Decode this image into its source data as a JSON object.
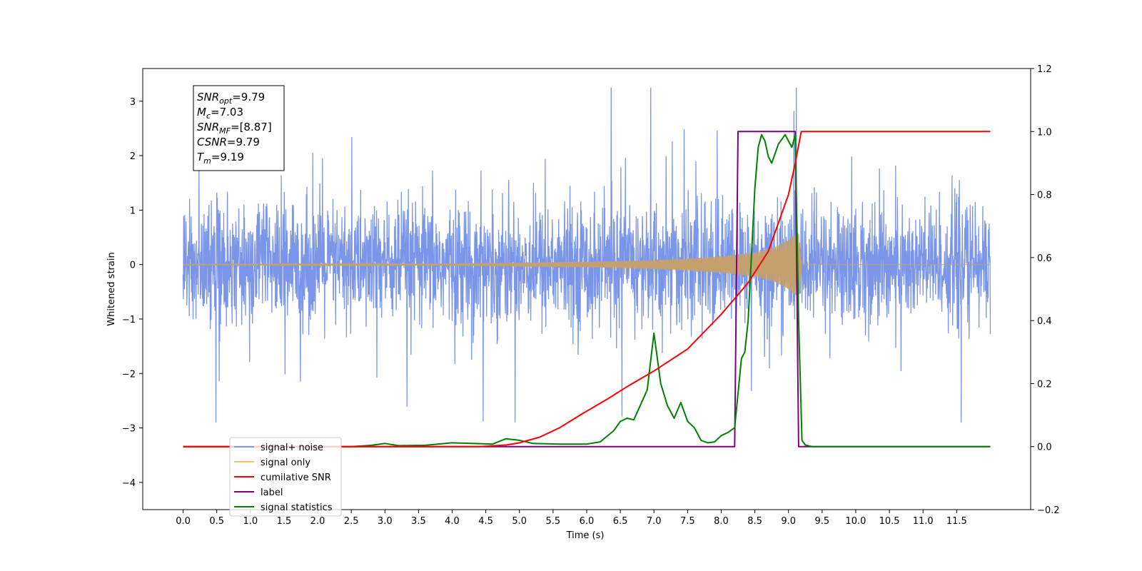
{
  "chart_data": {
    "type": "line",
    "xlabel": "Time (s)",
    "ylabel": "Whitened strain",
    "xlim": [
      -0.6,
      12.6
    ],
    "ylim_left": [
      -4.5,
      3.6
    ],
    "ylim_right": [
      -0.2,
      1.2
    ],
    "x_ticks": [
      "0.0",
      "0.5",
      "1.0",
      "1.5",
      "2.0",
      "2.5",
      "3.0",
      "3.5",
      "4.0",
      "4.5",
      "5.0",
      "5.5",
      "6.0",
      "6.5",
      "7.0",
      "7.5",
      "8.0",
      "8.5",
      "9.0",
      "9.5",
      "10.0",
      "10.5",
      "11.0",
      "11.5"
    ],
    "y_ticks_left": [
      "3",
      "2",
      "1",
      "0",
      "−1",
      "−2",
      "−3",
      "−4"
    ],
    "y_ticks_right": [
      "1.2",
      "1.0",
      "0.8",
      "0.6",
      "0.4",
      "0.2",
      "0.0",
      "−0.2"
    ],
    "legend_placement": "lower-left",
    "colors": {
      "signal_noise": "#7b96e8",
      "signal_only": "#c4a06e",
      "cumulative_snr": "#ff0000",
      "label": "#800080",
      "signal_statistics": "#008000"
    },
    "series": [
      {
        "name": "signal+ noise",
        "axis": "left",
        "style": "dense noise trace spanning roughly ±1.5 with spikes to ±3.2, x from 0.0 to 12.0"
      },
      {
        "name": "signal only",
        "axis": "left",
        "style": "chirp envelope",
        "x": [
          0.0,
          4.0,
          6.0,
          7.0,
          7.5,
          8.0,
          8.5,
          8.8,
          9.0,
          9.15,
          9.2,
          12.0
        ],
        "amplitude": [
          0.005,
          0.02,
          0.05,
          0.08,
          0.11,
          0.15,
          0.22,
          0.32,
          0.45,
          0.6,
          0.0,
          0.0
        ]
      },
      {
        "name": "cumilative SNR",
        "axis": "right",
        "x": [
          0.0,
          4.4,
          4.8,
          5.0,
          5.3,
          5.6,
          5.9,
          6.3,
          6.6,
          7.0,
          7.5,
          8.0,
          8.4,
          8.7,
          9.0,
          9.1,
          9.19,
          12.0
        ],
        "values": [
          0.0,
          0.0,
          0.005,
          0.012,
          0.03,
          0.06,
          0.1,
          0.15,
          0.19,
          0.24,
          0.31,
          0.42,
          0.52,
          0.62,
          0.8,
          0.9,
          1.0,
          1.0
        ]
      },
      {
        "name": "label",
        "axis": "right",
        "x": [
          0.0,
          8.2,
          8.25,
          9.1,
          9.15,
          12.0
        ],
        "values": [
          0.0,
          0.0,
          1.0,
          1.0,
          0.0,
          0.0
        ]
      },
      {
        "name": "signal statistics",
        "axis": "right",
        "x": [
          0.0,
          2.5,
          2.8,
          3.0,
          3.2,
          3.6,
          4.0,
          4.3,
          4.6,
          4.8,
          5.0,
          5.2,
          5.6,
          6.0,
          6.2,
          6.4,
          6.5,
          6.6,
          6.7,
          6.9,
          7.0,
          7.1,
          7.2,
          7.3,
          7.4,
          7.5,
          7.6,
          7.7,
          7.8,
          7.9,
          8.0,
          8.1,
          8.2,
          8.3,
          8.35,
          8.4,
          8.5,
          8.55,
          8.6,
          8.65,
          8.7,
          8.75,
          8.85,
          8.95,
          9.0,
          9.05,
          9.1,
          9.15,
          9.2,
          9.25,
          9.35,
          12.0
        ],
        "values": [
          0.0,
          0.0,
          0.004,
          0.01,
          0.003,
          0.004,
          0.012,
          0.01,
          0.008,
          0.025,
          0.02,
          0.01,
          0.008,
          0.008,
          0.015,
          0.05,
          0.08,
          0.09,
          0.085,
          0.18,
          0.36,
          0.2,
          0.13,
          0.09,
          0.14,
          0.08,
          0.06,
          0.02,
          0.012,
          0.015,
          0.035,
          0.045,
          0.06,
          0.28,
          0.3,
          0.4,
          0.82,
          0.95,
          0.99,
          0.97,
          0.92,
          0.9,
          0.96,
          0.99,
          0.97,
          0.95,
          0.99,
          0.4,
          0.02,
          0.005,
          0.0,
          0.0
        ]
      }
    ],
    "annotations": [
      {
        "key": "SNR",
        "sub": "opt",
        "value": "=9.79"
      },
      {
        "key": "M",
        "sub": "c",
        "value": "=7.03"
      },
      {
        "key": "SNR",
        "sub": "MF",
        "value": "=[8.87]"
      },
      {
        "key": "CSNR",
        "sub": "",
        "value": "=9.79"
      },
      {
        "key": "T",
        "sub": "m",
        "value": "=9.19"
      }
    ],
    "legend": [
      {
        "label": "signal+ noise",
        "color": "#7b96e8"
      },
      {
        "label": "signal only",
        "color": "#ffc36b"
      },
      {
        "label": "cumilative SNR",
        "color": "#ff0000"
      },
      {
        "label": "label",
        "color": "#800080"
      },
      {
        "label": "signal statistics",
        "color": "#008000"
      }
    ]
  }
}
